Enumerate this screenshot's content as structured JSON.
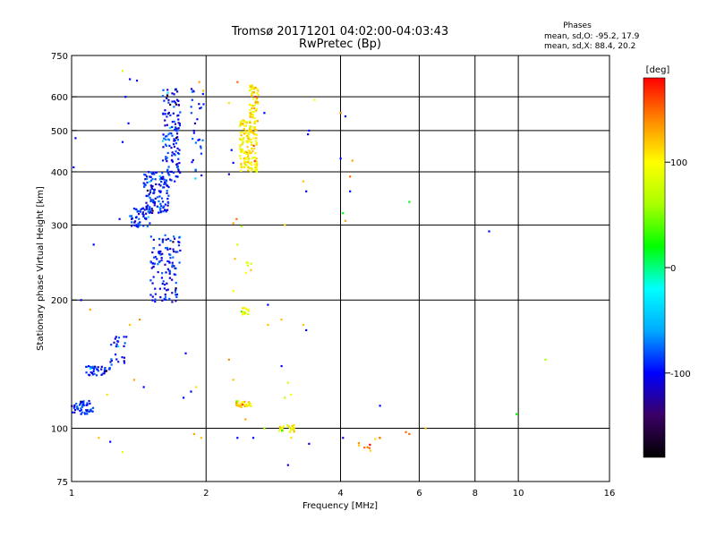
{
  "chart_data": {
    "type": "scatter",
    "title": "Tromsø 20171201 04:02:00-04:03:43",
    "subtitle": "RwPretec (Bp)",
    "xlabel": "Frequency [MHz]",
    "ylabel": "Stationary phase Virtual Height [km]",
    "x_scale": "log",
    "y_scale": "log",
    "xlim": [
      1,
      16
    ],
    "ylim": [
      75,
      750
    ],
    "x_ticks": [
      1,
      2,
      4,
      6,
      8,
      10,
      16
    ],
    "x_tick_labels": [
      "1",
      "2",
      "4",
      "6",
      "8",
      "10",
      "16"
    ],
    "y_ticks": [
      75,
      100,
      200,
      300,
      400,
      500,
      600,
      750
    ],
    "y_tick_labels": [
      "75",
      "100",
      "200",
      "300",
      "400",
      "500",
      "600",
      "750"
    ],
    "grid": true,
    "legend": {
      "title": "Phases",
      "entries": [
        "mean, sd,O: -95.2, 17.9",
        "mean, sd,X:  88.4, 20.2"
      ],
      "placement": "top-right"
    },
    "colorbar": {
      "label": "[deg]",
      "range": [
        -180,
        180
      ],
      "ticks": [
        100,
        0,
        -100
      ],
      "tick_labels": [
        "100",
        "0",
        "-100"
      ],
      "colors": [
        "#000000",
        "#3b0066",
        "#0000ff",
        "#00aaff",
        "#00ffff",
        "#00ff00",
        "#aaff00",
        "#ffff00",
        "#ff8800",
        "#ff0000"
      ]
    },
    "clusters": [
      {
        "x_range": [
          1.0,
          1.12
        ],
        "y_range": [
          108,
          116
        ],
        "phase": -95,
        "count": 50
      },
      {
        "x_range": [
          1.07,
          1.22
        ],
        "y_range": [
          133,
          140
        ],
        "phase": -95,
        "count": 40
      },
      {
        "x_range": [
          1.22,
          1.33
        ],
        "y_range": [
          140,
          165
        ],
        "phase": -95,
        "count": 25
      },
      {
        "x_range": [
          1.5,
          1.75
        ],
        "y_range": [
          198,
          285
        ],
        "phase": -95,
        "count": 120
      },
      {
        "x_range": [
          1.35,
          1.5
        ],
        "y_range": [
          297,
          330
        ],
        "phase": -95,
        "count": 50
      },
      {
        "x_range": [
          1.45,
          1.65
        ],
        "y_range": [
          320,
          400
        ],
        "phase": -95,
        "count": 120
      },
      {
        "x_range": [
          1.6,
          1.75
        ],
        "y_range": [
          380,
          630
        ],
        "phase": -95,
        "count": 130
      },
      {
        "x_range": [
          1.85,
          1.98
        ],
        "y_range": [
          380,
          630
        ],
        "phase": -95,
        "count": 30
      },
      {
        "x_range": [
          2.38,
          2.6
        ],
        "y_range": [
          400,
          530
        ],
        "phase": 100,
        "count": 160
      },
      {
        "x_range": [
          2.5,
          2.62
        ],
        "y_range": [
          520,
          640
        ],
        "phase": 110,
        "count": 50
      },
      {
        "x_range": [
          2.33,
          2.52
        ],
        "y_range": [
          112,
          116
        ],
        "phase": 110,
        "count": 35
      },
      {
        "x_range": [
          2.38,
          2.5
        ],
        "y_range": [
          185,
          192
        ],
        "phase": 90,
        "count": 15
      },
      {
        "x_range": [
          2.45,
          2.55
        ],
        "y_range": [
          230,
          250
        ],
        "phase": 100,
        "count": 6
      },
      {
        "x_range": [
          2.9,
          3.15
        ],
        "y_range": [
          98,
          102
        ],
        "phase": 100,
        "count": 25
      },
      {
        "x_range": [
          4.3,
          4.9
        ],
        "y_range": [
          88,
          96
        ],
        "phase": 130,
        "count": 10
      }
    ],
    "points": [
      {
        "x": 1.3,
        "y": 690,
        "phase": 80
      },
      {
        "x": 1.35,
        "y": 660,
        "phase": -100
      },
      {
        "x": 1.4,
        "y": 655,
        "phase": -100
      },
      {
        "x": 1.32,
        "y": 600,
        "phase": -100
      },
      {
        "x": 1.34,
        "y": 520,
        "phase": -100
      },
      {
        "x": 1.02,
        "y": 480,
        "phase": -100
      },
      {
        "x": 1.01,
        "y": 410,
        "phase": -100
      },
      {
        "x": 1.3,
        "y": 470,
        "phase": -100
      },
      {
        "x": 1.28,
        "y": 310,
        "phase": -100
      },
      {
        "x": 1.12,
        "y": 270,
        "phase": -100
      },
      {
        "x": 1.05,
        "y": 200,
        "phase": -100
      },
      {
        "x": 1.1,
        "y": 190,
        "phase": 130
      },
      {
        "x": 1.35,
        "y": 175,
        "phase": 120
      },
      {
        "x": 1.42,
        "y": 180,
        "phase": 140
      },
      {
        "x": 1.38,
        "y": 130,
        "phase": 130
      },
      {
        "x": 1.45,
        "y": 125,
        "phase": -100
      },
      {
        "x": 1.2,
        "y": 120,
        "phase": 110
      },
      {
        "x": 1.15,
        "y": 95,
        "phase": 120
      },
      {
        "x": 1.22,
        "y": 93,
        "phase": -100
      },
      {
        "x": 1.3,
        "y": 88,
        "phase": 90
      },
      {
        "x": 1.8,
        "y": 150,
        "phase": -100
      },
      {
        "x": 1.78,
        "y": 118,
        "phase": -100
      },
      {
        "x": 1.85,
        "y": 122,
        "phase": -100
      },
      {
        "x": 1.9,
        "y": 125,
        "phase": 110
      },
      {
        "x": 1.95,
        "y": 95,
        "phase": 120
      },
      {
        "x": 1.88,
        "y": 97,
        "phase": 130
      },
      {
        "x": 1.93,
        "y": 650,
        "phase": 130
      },
      {
        "x": 1.97,
        "y": 620,
        "phase": 120
      },
      {
        "x": 2.35,
        "y": 650,
        "phase": 150
      },
      {
        "x": 2.34,
        "y": 310,
        "phase": 150
      },
      {
        "x": 2.3,
        "y": 303,
        "phase": 130
      },
      {
        "x": 2.4,
        "y": 298,
        "phase": 60
      },
      {
        "x": 2.35,
        "y": 270,
        "phase": 80
      },
      {
        "x": 2.3,
        "y": 210,
        "phase": 100
      },
      {
        "x": 2.32,
        "y": 250,
        "phase": 120
      },
      {
        "x": 2.25,
        "y": 580,
        "phase": 110
      },
      {
        "x": 2.28,
        "y": 450,
        "phase": -100
      },
      {
        "x": 2.3,
        "y": 420,
        "phase": -100
      },
      {
        "x": 2.25,
        "y": 395,
        "phase": -100
      },
      {
        "x": 2.7,
        "y": 550,
        "phase": -100
      },
      {
        "x": 2.75,
        "y": 195,
        "phase": -100
      },
      {
        "x": 2.75,
        "y": 175,
        "phase": 120
      },
      {
        "x": 2.25,
        "y": 145,
        "phase": 140
      },
      {
        "x": 2.3,
        "y": 130,
        "phase": 120
      },
      {
        "x": 2.45,
        "y": 105,
        "phase": 130
      },
      {
        "x": 2.55,
        "y": 95,
        "phase": -100
      },
      {
        "x": 2.35,
        "y": 95,
        "phase": -100
      },
      {
        "x": 2.7,
        "y": 100,
        "phase": 60
      },
      {
        "x": 2.95,
        "y": 140,
        "phase": -100
      },
      {
        "x": 3.0,
        "y": 118,
        "phase": 70
      },
      {
        "x": 3.1,
        "y": 120,
        "phase": 100
      },
      {
        "x": 3.05,
        "y": 128,
        "phase": 80
      },
      {
        "x": 2.95,
        "y": 180,
        "phase": 120
      },
      {
        "x": 3.1,
        "y": 95,
        "phase": 110
      },
      {
        "x": 3.05,
        "y": 82,
        "phase": -110
      },
      {
        "x": 3.4,
        "y": 92,
        "phase": -110
      },
      {
        "x": 3.3,
        "y": 175,
        "phase": 120
      },
      {
        "x": 3.35,
        "y": 170,
        "phase": -100
      },
      {
        "x": 3.38,
        "y": 490,
        "phase": -100
      },
      {
        "x": 3.4,
        "y": 500,
        "phase": -100
      },
      {
        "x": 3.3,
        "y": 380,
        "phase": 120
      },
      {
        "x": 3.35,
        "y": 360,
        "phase": -100
      },
      {
        "x": 3.5,
        "y": 590,
        "phase": 100
      },
      {
        "x": 3.0,
        "y": 300,
        "phase": 110
      },
      {
        "x": 4.0,
        "y": 550,
        "phase": 140
      },
      {
        "x": 4.1,
        "y": 540,
        "phase": -100
      },
      {
        "x": 4.0,
        "y": 430,
        "phase": -100
      },
      {
        "x": 4.25,
        "y": 425,
        "phase": 130
      },
      {
        "x": 4.2,
        "y": 390,
        "phase": 150
      },
      {
        "x": 4.2,
        "y": 360,
        "phase": -100
      },
      {
        "x": 4.05,
        "y": 320,
        "phase": 20
      },
      {
        "x": 4.1,
        "y": 307,
        "phase": 130
      },
      {
        "x": 4.05,
        "y": 95,
        "phase": -110
      },
      {
        "x": 4.9,
        "y": 113,
        "phase": -100
      },
      {
        "x": 5.6,
        "y": 98,
        "phase": 150
      },
      {
        "x": 5.7,
        "y": 97,
        "phase": 150
      },
      {
        "x": 5.7,
        "y": 340,
        "phase": 20
      },
      {
        "x": 6.2,
        "y": 100,
        "phase": 120
      },
      {
        "x": 8.6,
        "y": 290,
        "phase": -100
      },
      {
        "x": 9.9,
        "y": 108,
        "phase": 20
      },
      {
        "x": 11.5,
        "y": 145,
        "phase": 60
      }
    ]
  }
}
